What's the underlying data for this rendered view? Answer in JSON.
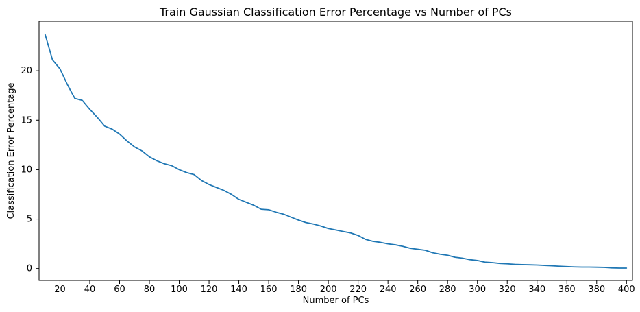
{
  "chart_data": {
    "type": "line",
    "title": "Train Gaussian Classification Error Percentage vs Number of PCs",
    "xlabel": "Number of PCs",
    "ylabel": "Classification Error Percentage",
    "xlim": [
      6,
      404
    ],
    "ylim": [
      -1.2,
      25
    ],
    "xticks": [
      20,
      40,
      60,
      80,
      100,
      120,
      140,
      160,
      180,
      200,
      220,
      240,
      260,
      280,
      300,
      320,
      340,
      360,
      380,
      400
    ],
    "yticks": [
      0,
      5,
      10,
      15,
      20
    ],
    "grid": false,
    "legend": "none",
    "series": [
      {
        "color": "#1f77b4",
        "x": [
          10,
          15,
          20,
          25,
          30,
          35,
          40,
          45,
          50,
          55,
          60,
          65,
          70,
          75,
          80,
          85,
          90,
          95,
          100,
          105,
          110,
          115,
          120,
          125,
          130,
          135,
          140,
          145,
          150,
          155,
          160,
          165,
          170,
          175,
          180,
          185,
          190,
          195,
          200,
          205,
          210,
          215,
          220,
          225,
          230,
          235,
          240,
          245,
          250,
          255,
          260,
          265,
          270,
          275,
          280,
          285,
          290,
          295,
          300,
          305,
          310,
          315,
          320,
          325,
          330,
          335,
          340,
          345,
          350,
          355,
          360,
          365,
          370,
          375,
          380,
          385,
          390,
          395,
          400
        ],
        "y": [
          23.7,
          21.1,
          20.2,
          18.6,
          17.2,
          17.0,
          16.1,
          15.3,
          14.4,
          14.1,
          13.6,
          12.9,
          12.3,
          11.9,
          11.3,
          10.9,
          10.6,
          10.4,
          10.0,
          9.7,
          9.5,
          8.9,
          8.5,
          8.2,
          7.9,
          7.5,
          7.0,
          6.7,
          6.4,
          6.0,
          5.95,
          5.7,
          5.5,
          5.2,
          4.9,
          4.65,
          4.5,
          4.3,
          4.05,
          3.9,
          3.75,
          3.6,
          3.35,
          2.95,
          2.75,
          2.65,
          2.5,
          2.4,
          2.25,
          2.05,
          1.95,
          1.85,
          1.6,
          1.45,
          1.35,
          1.15,
          1.05,
          0.9,
          0.82,
          0.65,
          0.6,
          0.52,
          0.48,
          0.43,
          0.4,
          0.38,
          0.36,
          0.32,
          0.28,
          0.24,
          0.2,
          0.17,
          0.15,
          0.15,
          0.14,
          0.12,
          0.07,
          0.05,
          0.05
        ]
      }
    ]
  }
}
